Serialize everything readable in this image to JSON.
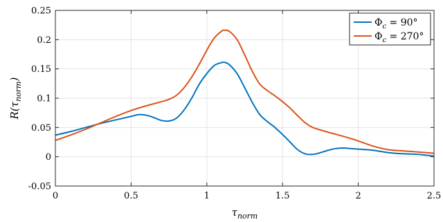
{
  "chart_data": {
    "type": "line",
    "xlabel": "τnorm",
    "ylabel": "R(τnorm)",
    "xlim": [
      0,
      2.5
    ],
    "ylim": [
      -0.05,
      0.25
    ],
    "x_ticks": [
      "0",
      "0.5",
      "1",
      "1.5",
      "2",
      "2.5"
    ],
    "y_ticks": [
      "-0.05",
      "0",
      "0.05",
      "0.1",
      "0.15",
      "0.2",
      "0.25"
    ],
    "grid": true,
    "legend_position": "top-right",
    "series": [
      {
        "name": "Φc = 90°",
        "color": "#0072bd",
        "x": [
          0,
          0.1,
          0.2,
          0.3,
          0.4,
          0.5,
          0.55,
          0.6,
          0.65,
          0.7,
          0.75,
          0.8,
          0.85,
          0.9,
          0.95,
          1.0,
          1.05,
          1.1,
          1.12,
          1.15,
          1.2,
          1.25,
          1.3,
          1.35,
          1.4,
          1.45,
          1.5,
          1.55,
          1.6,
          1.65,
          1.7,
          1.75,
          1.8,
          1.85,
          1.9,
          1.95,
          2.0,
          2.1,
          2.2,
          2.3,
          2.4,
          2.5
        ],
        "y": [
          0.037,
          0.043,
          0.05,
          0.057,
          0.063,
          0.069,
          0.072,
          0.071,
          0.067,
          0.062,
          0.061,
          0.066,
          0.08,
          0.1,
          0.124,
          0.142,
          0.156,
          0.161,
          0.161,
          0.157,
          0.142,
          0.118,
          0.093,
          0.072,
          0.06,
          0.05,
          0.038,
          0.025,
          0.012,
          0.005,
          0.004,
          0.007,
          0.011,
          0.014,
          0.015,
          0.014,
          0.013,
          0.011,
          0.007,
          0.005,
          0.004,
          0.001
        ]
      },
      {
        "name": "Φc = 270°",
        "color": "#d95319",
        "x": [
          0,
          0.1,
          0.2,
          0.3,
          0.4,
          0.5,
          0.6,
          0.7,
          0.75,
          0.8,
          0.85,
          0.9,
          0.95,
          1.0,
          1.05,
          1.1,
          1.12,
          1.15,
          1.2,
          1.25,
          1.3,
          1.35,
          1.4,
          1.45,
          1.5,
          1.55,
          1.6,
          1.65,
          1.7,
          1.8,
          1.9,
          2.0,
          2.1,
          2.2,
          2.3,
          2.4,
          2.5
        ],
        "y": [
          0.028,
          0.037,
          0.047,
          0.058,
          0.069,
          0.079,
          0.087,
          0.094,
          0.098,
          0.105,
          0.118,
          0.136,
          0.158,
          0.182,
          0.203,
          0.215,
          0.216,
          0.214,
          0.2,
          0.174,
          0.146,
          0.124,
          0.113,
          0.104,
          0.094,
          0.083,
          0.07,
          0.058,
          0.05,
          0.042,
          0.035,
          0.027,
          0.018,
          0.012,
          0.01,
          0.008,
          0.006
        ]
      }
    ]
  }
}
